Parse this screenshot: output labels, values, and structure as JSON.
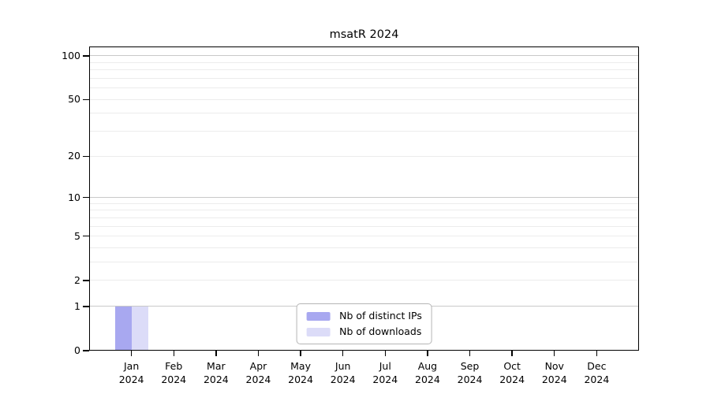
{
  "title": "msatR 2024",
  "chart_data": {
    "type": "bar",
    "title": "msatR 2024",
    "categories": [
      "Jan",
      "Feb",
      "Mar",
      "Apr",
      "May",
      "Jun",
      "Jul",
      "Aug",
      "Sep",
      "Oct",
      "Nov",
      "Dec"
    ],
    "x_second_line": "2024",
    "series": [
      {
        "name": "Nb of distinct IPs",
        "color": "#a8a8f0",
        "values": [
          1,
          0,
          0,
          0,
          0,
          0,
          0,
          0,
          0,
          0,
          0,
          0
        ]
      },
      {
        "name": "Nb of downloads",
        "color": "#dcdcf8",
        "values": [
          1,
          0,
          0,
          0,
          0,
          0,
          0,
          0,
          0,
          0,
          0,
          0
        ]
      }
    ],
    "yscale": "log1p",
    "ylim": [
      0,
      116
    ],
    "yticks": [
      0,
      1,
      2,
      5,
      10,
      20,
      50,
      100
    ],
    "grid_major": [
      1,
      10,
      100
    ],
    "grid_minor": [
      2,
      3,
      4,
      5,
      6,
      7,
      8,
      9,
      20,
      30,
      40,
      50,
      60,
      70,
      80,
      90
    ],
    "xlabel": "",
    "ylabel": "",
    "grid": true,
    "legend_position": "lower center",
    "axis_color": "#000000",
    "background_color": "#ffffff"
  }
}
